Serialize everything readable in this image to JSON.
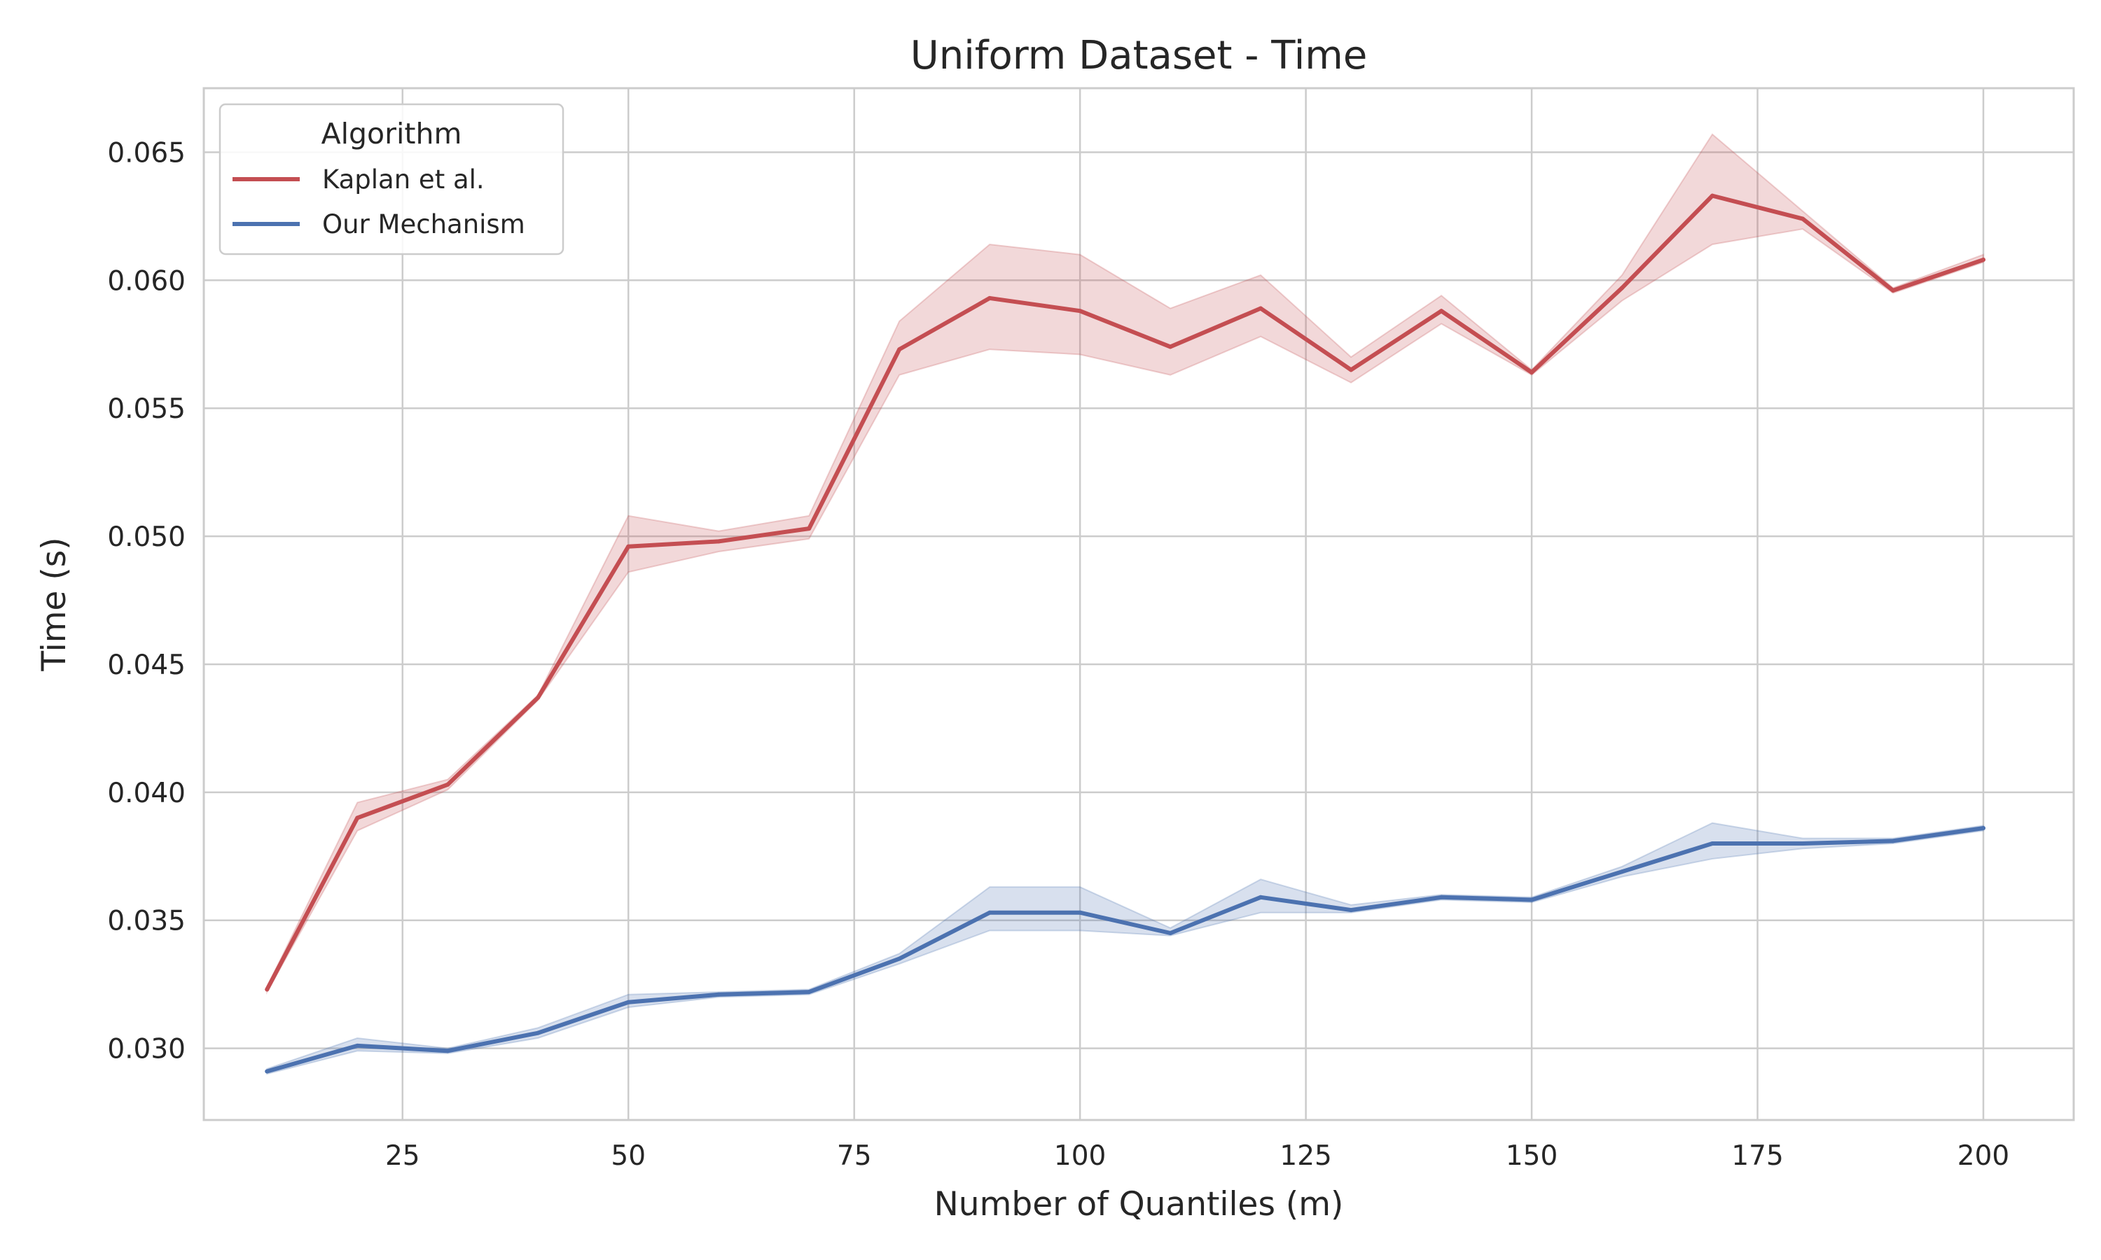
{
  "chart_data": {
    "type": "line",
    "title": "Uniform Dataset - Time",
    "xlabel": "Number of Quantiles (m)",
    "ylabel": "Time (s)",
    "xlim": [
      3,
      210
    ],
    "ylim": [
      0.0272,
      0.0675
    ],
    "xticks": [
      25,
      50,
      75,
      100,
      125,
      150,
      175,
      200
    ],
    "yticks": [
      0.03,
      0.035,
      0.04,
      0.045,
      0.05,
      0.055,
      0.06,
      0.065
    ],
    "ytick_labels": [
      "0.030",
      "0.035",
      "0.040",
      "0.045",
      "0.050",
      "0.055",
      "0.060",
      "0.065"
    ],
    "grid": true,
    "legend": {
      "title": "Algorithm",
      "position": "top-left"
    },
    "x": [
      10,
      20,
      30,
      40,
      50,
      60,
      70,
      80,
      90,
      100,
      110,
      120,
      130,
      140,
      150,
      160,
      170,
      180,
      190,
      200
    ],
    "series": [
      {
        "name": "Kaplan et al.",
        "color": "#c44e52",
        "values": [
          0.0323,
          0.039,
          0.0403,
          0.0437,
          0.0496,
          0.0498,
          0.0503,
          0.0573,
          0.0593,
          0.0588,
          0.0574,
          0.0589,
          0.0565,
          0.0588,
          0.0564,
          0.0597,
          0.0633,
          0.0624,
          0.0596,
          0.0608
        ],
        "lower": [
          0.0322,
          0.0385,
          0.0401,
          0.0436,
          0.0486,
          0.0494,
          0.0499,
          0.0563,
          0.0573,
          0.0571,
          0.0563,
          0.0578,
          0.056,
          0.0583,
          0.0563,
          0.0592,
          0.0614,
          0.062,
          0.0595,
          0.0607
        ],
        "upper": [
          0.0324,
          0.0396,
          0.0405,
          0.0438,
          0.0508,
          0.0502,
          0.0508,
          0.0584,
          0.0614,
          0.061,
          0.0589,
          0.0602,
          0.057,
          0.0594,
          0.0565,
          0.0602,
          0.0657,
          0.0627,
          0.0597,
          0.061
        ]
      },
      {
        "name": "Our Mechanism",
        "color": "#4c72b0",
        "values": [
          0.0291,
          0.0301,
          0.0299,
          0.0306,
          0.0318,
          0.0321,
          0.0322,
          0.0335,
          0.0353,
          0.0353,
          0.0345,
          0.0359,
          0.0354,
          0.0359,
          0.0358,
          0.0369,
          0.038,
          0.038,
          0.0381,
          0.0386
        ],
        "lower": [
          0.029,
          0.0299,
          0.0298,
          0.0304,
          0.0316,
          0.032,
          0.0321,
          0.0333,
          0.0346,
          0.0346,
          0.0344,
          0.0353,
          0.0353,
          0.0358,
          0.0357,
          0.0367,
          0.0374,
          0.0378,
          0.038,
          0.0385
        ],
        "upper": [
          0.0292,
          0.0304,
          0.03,
          0.0308,
          0.0321,
          0.0322,
          0.0323,
          0.0337,
          0.0363,
          0.0363,
          0.0347,
          0.0366,
          0.0356,
          0.036,
          0.0359,
          0.0371,
          0.0388,
          0.0382,
          0.0382,
          0.0387
        ]
      }
    ]
  }
}
